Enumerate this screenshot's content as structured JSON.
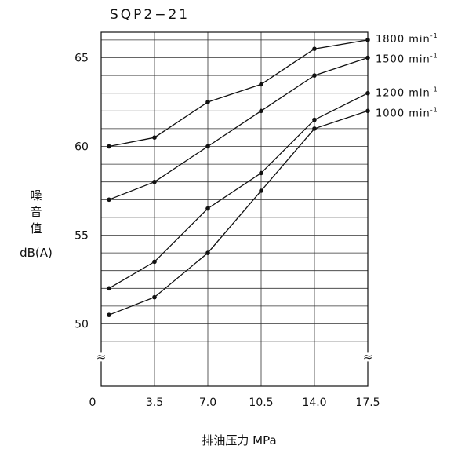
{
  "chart_data": {
    "type": "line",
    "title": "SQP2−21",
    "xlabel": "排油压力 MPa",
    "ylabel_lines": [
      "噪",
      "音",
      "值",
      "dB(A)"
    ],
    "x_origin_label": "0",
    "x": [
      1.0,
      3.5,
      7.0,
      10.5,
      14.0,
      17.5
    ],
    "x_tick_labels": [
      "3.5",
      "7.0",
      "10.5",
      "14.0",
      "17.5"
    ],
    "y_ticks": [
      50,
      55,
      60,
      65
    ],
    "ylim": [
      50,
      66
    ],
    "break_symbol": "≈",
    "series": [
      {
        "name": "1800 min",
        "sup": "-1",
        "values": [
          60,
          60.5,
          62.5,
          63.5,
          65.5,
          66
        ]
      },
      {
        "name": "1500 min",
        "sup": "-1",
        "values": [
          57,
          58,
          60,
          62,
          64,
          65
        ]
      },
      {
        "name": "1200 min",
        "sup": "-1",
        "values": [
          52,
          53.5,
          56.5,
          58.5,
          61.5,
          63
        ]
      },
      {
        "name": "1000 min",
        "sup": "-1",
        "values": [
          50.5,
          51.5,
          54,
          57.5,
          61,
          62
        ]
      }
    ],
    "grid": true,
    "line_color": "#111111"
  }
}
